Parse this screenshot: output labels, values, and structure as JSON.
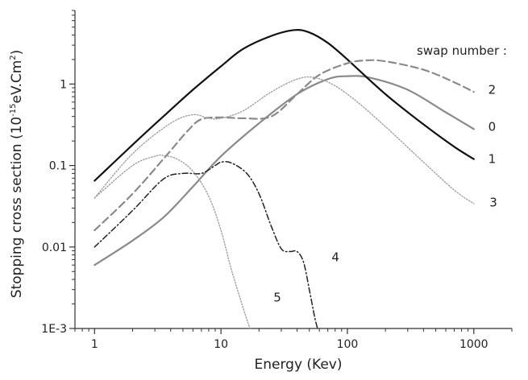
{
  "chart_data": {
    "type": "line",
    "title": "",
    "xlabel": "Energy (Kev)",
    "ylabel": "Stopping cross section (10",
    "ylabel_sup1": "-15",
    "ylabel_mid": "eV.Cm",
    "ylabel_sup2": "2",
    "ylabel_end": ")",
    "xscale": "log",
    "yscale": "log",
    "xlim": [
      0.7,
      2000
    ],
    "ylim": [
      0.001,
      8
    ],
    "x_ticks": [
      {
        "value": 1,
        "label": "1"
      },
      {
        "value": 10,
        "label": "10"
      },
      {
        "value": 100,
        "label": "100"
      },
      {
        "value": 1000,
        "label": "1000"
      }
    ],
    "y_ticks": [
      {
        "value": 0.001,
        "label": "1E-3"
      },
      {
        "value": 0.01,
        "label": "0.01"
      },
      {
        "value": 0.1,
        "label": "0.1"
      },
      {
        "value": 1,
        "label": "1"
      }
    ],
    "legend_title": "swap number :",
    "grid": false,
    "series": [
      {
        "name": "0",
        "style": "solid-gray",
        "x": [
          1,
          2,
          3.5,
          6,
          10,
          20,
          40,
          70,
          100,
          150,
          300,
          600,
          1000
        ],
        "y": [
          0.006,
          0.012,
          0.023,
          0.055,
          0.13,
          0.33,
          0.75,
          1.15,
          1.25,
          1.2,
          0.85,
          0.45,
          0.28
        ]
      },
      {
        "name": "1",
        "style": "solid-black",
        "x": [
          1,
          2,
          3.5,
          6,
          10,
          15,
          25,
          38,
          50,
          70,
          100,
          200,
          400,
          700,
          1000
        ],
        "y": [
          0.065,
          0.18,
          0.4,
          0.85,
          1.65,
          2.7,
          3.9,
          4.6,
          4.3,
          3.2,
          2.0,
          0.75,
          0.32,
          0.17,
          0.12
        ]
      },
      {
        "name": "2",
        "style": "dashed-gray",
        "x": [
          1,
          2,
          3.5,
          5.5,
          7,
          10,
          15,
          25,
          40,
          60,
          100,
          140,
          200,
          400,
          700,
          1000
        ],
        "y": [
          0.016,
          0.045,
          0.12,
          0.27,
          0.37,
          0.39,
          0.38,
          0.4,
          0.75,
          1.3,
          1.8,
          1.95,
          1.9,
          1.5,
          1.05,
          0.8
        ]
      },
      {
        "name": "3",
        "style": "dotted-gray",
        "x": [
          1,
          2,
          4,
          6,
          8,
          10,
          15,
          25,
          40,
          55,
          80,
          120,
          200,
          400,
          700,
          1000
        ],
        "y": [
          0.04,
          0.14,
          0.33,
          0.42,
          0.38,
          0.38,
          0.47,
          0.8,
          1.15,
          1.2,
          0.95,
          0.6,
          0.3,
          0.11,
          0.05,
          0.034
        ]
      },
      {
        "name": "4",
        "style": "dashdot-black",
        "x": [
          1,
          2,
          3.5,
          5,
          7,
          9,
          10,
          12,
          16,
          20,
          25,
          30,
          35,
          40,
          45,
          50,
          55,
          58
        ],
        "y": [
          0.01,
          0.028,
          0.068,
          0.08,
          0.08,
          0.1,
          0.11,
          0.108,
          0.08,
          0.045,
          0.018,
          0.0095,
          0.0088,
          0.0088,
          0.0065,
          0.003,
          0.0014,
          0.001
        ]
      },
      {
        "name": "5",
        "style": "dotted-gray",
        "x": [
          1,
          2,
          3,
          3.5,
          4.5,
          6,
          8,
          10,
          12,
          14,
          16,
          17
        ],
        "y": [
          0.04,
          0.1,
          0.13,
          0.133,
          0.12,
          0.085,
          0.042,
          0.016,
          0.0055,
          0.0025,
          0.0013,
          0.001
        ]
      }
    ],
    "series_labels": [
      {
        "text": "2",
        "x": 1300,
        "y": 0.85
      },
      {
        "text": "0",
        "x": 1300,
        "y": 0.3
      },
      {
        "text": "1",
        "x": 1300,
        "y": 0.12
      },
      {
        "text": "3",
        "x": 1330,
        "y": 0.035
      },
      {
        "text": "4",
        "x": 75,
        "y": 0.0075
      },
      {
        "text": "5",
        "x": 26,
        "y": 0.0024
      }
    ]
  }
}
